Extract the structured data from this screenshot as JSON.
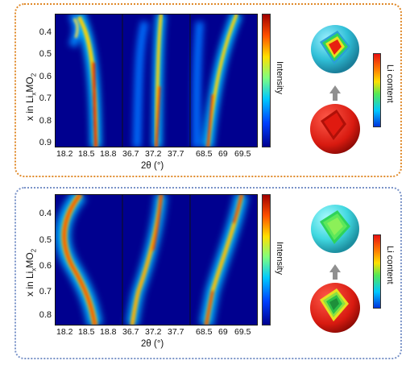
{
  "panels": [
    {
      "id": "top",
      "y_axis_label": "x in Li",
      "y_axis_subscript": "x",
      "y_axis_label_suffix": "MO",
      "y_axis_label_sub2": "2",
      "yticks": [
        "0.4",
        "0.5",
        "0.6",
        "0.7",
        "0.8",
        "0.9"
      ],
      "xtick_groups": [
        [
          "18.2",
          "18.5",
          "18.8"
        ],
        [
          "36.7",
          "37.2",
          "37.7"
        ],
        [
          "68.5",
          "69",
          "69.5"
        ]
      ],
      "xlabel": "2θ (°)",
      "colorbar_label": "Intensity",
      "li_colorbar_label": "Li content",
      "frame_color": "#e08a2a"
    },
    {
      "id": "bottom",
      "y_axis_label": "x in Li",
      "y_axis_subscript": "x",
      "y_axis_label_suffix": "MO",
      "y_axis_label_sub2": "2",
      "yticks": [
        "0.4",
        "0.5",
        "0.6",
        "0.7",
        "0.8"
      ],
      "xtick_groups": [
        [
          "18.2",
          "18.5",
          "18.8"
        ],
        [
          "36.7",
          "37.2",
          "37.7"
        ],
        [
          "68.5",
          "69",
          "69.5"
        ]
      ],
      "xlabel": "2θ (°)",
      "colorbar_label": "Intensity",
      "li_colorbar_label": "Li content",
      "frame_color": "#7a93c8"
    }
  ]
}
